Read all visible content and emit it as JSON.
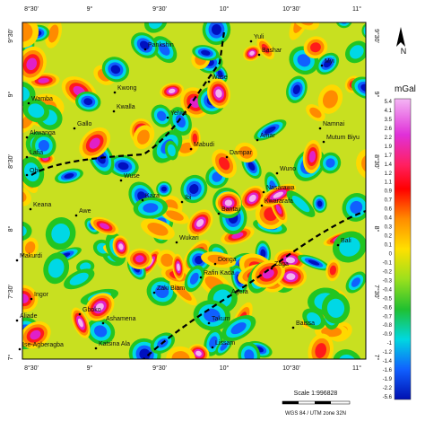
{
  "map": {
    "x_labels": [
      "8°30'",
      "9°",
      "9°30'",
      "10°",
      "10°30'",
      "11°"
    ],
    "y_labels": [
      "9°30'",
      "9°",
      "8°30'",
      "8°",
      "7°30'",
      "7°"
    ],
    "towns": [
      "Pankshin",
      "Yuli",
      "Bashar",
      "Wase",
      "Myi",
      "Wamba",
      "Kwong",
      "Gallo",
      "Kwalla",
      "Yelwa",
      "Akwanga",
      "Lafia",
      "Obi",
      "Mabudi",
      "Dampar",
      "Amar",
      "Namnai",
      "Mutum Biyu",
      "Wuse",
      "Wuno",
      "Keana",
      "Awe",
      "Kaza",
      "Ibi",
      "Nasarawa",
      "Kwararafa",
      "Bantaji",
      "Wukari",
      "Donga",
      "Rafin Kada",
      "Zaga",
      "Bali",
      "Makurdi",
      "Ingor",
      "Zaki Biam",
      "Agera",
      "Aliade",
      "Gboko",
      "Ashamena",
      "Takum",
      "Baissa",
      "Ise-Agberagba",
      "Katsina Ala",
      "Lissam"
    ],
    "legend": {
      "title": "mGal",
      "labels": [
        "5.4",
        "4.1",
        "3.5",
        "2.6",
        "2.2",
        "1.9",
        "1.7",
        "1.4",
        "1.2",
        "1.1",
        "0.9",
        "0.7",
        "0.6",
        "0.4",
        "0.3",
        "0.2",
        "0.1",
        "0",
        "-0.1",
        "-0.2",
        "-0.3",
        "-0.4",
        "-0.5",
        "-0.6",
        "-0.7",
        "-0.8",
        "-0.9",
        "-1",
        "-1.2",
        "-1.4",
        "-1.6",
        "-1.9",
        "-2.2",
        "-5.6"
      ]
    },
    "north": "N",
    "scale": "Scale 1:996828",
    "projection": "WGS 84 / UTM zone 32N"
  }
}
